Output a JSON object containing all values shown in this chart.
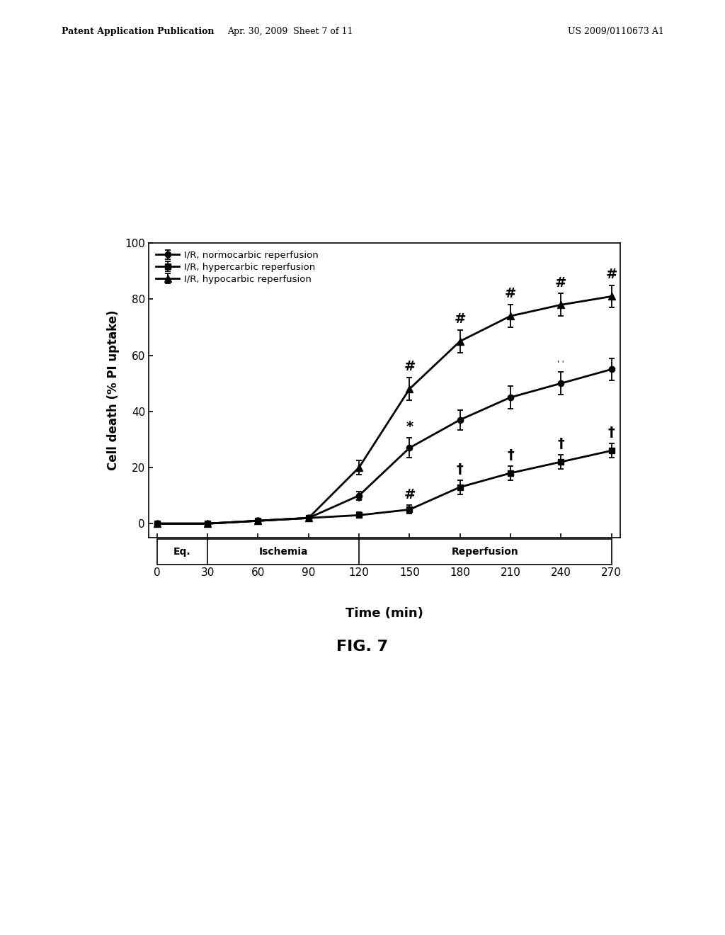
{
  "title": "FIG. 7",
  "patent_left": "Patent Application Publication",
  "patent_mid": "Apr. 30, 2009  Sheet 7 of 11",
  "patent_right": "US 2009/0110673 A1",
  "xlabel": "Time (min)",
  "ylabel": "Cell death (% PI uptake)",
  "xlim": [
    -5,
    275
  ],
  "ylim": [
    -5,
    100
  ],
  "yticks": [
    0,
    20,
    40,
    60,
    80,
    100
  ],
  "xticks": [
    0,
    30,
    60,
    90,
    120,
    150,
    180,
    210,
    240,
    270
  ],
  "time_points": [
    0,
    30,
    60,
    90,
    120,
    150,
    180,
    210,
    240,
    270
  ],
  "normocarbic_y": [
    0,
    0,
    1,
    2,
    10,
    27,
    37,
    45,
    50,
    55
  ],
  "normocarbic_err": [
    0.3,
    0.3,
    0.5,
    0.8,
    1.5,
    3.5,
    3.5,
    4,
    4,
    4
  ],
  "hypercarbic_y": [
    0,
    0,
    1,
    2,
    3,
    5,
    13,
    18,
    22,
    26
  ],
  "hypercarbic_err": [
    0.3,
    0.3,
    0.5,
    0.8,
    1,
    1.5,
    2.5,
    2.5,
    2.5,
    2.5
  ],
  "hypocarbic_y": [
    0,
    0,
    1,
    2,
    20,
    48,
    65,
    74,
    78,
    81
  ],
  "hypocarbic_err": [
    0.3,
    0.3,
    0.5,
    0.8,
    2.5,
    4,
    4,
    4,
    4,
    4
  ],
  "legend_labels": [
    "I/R, normocarbic reperfusion",
    "I/R, hypercarbic reperfusion",
    "I/R, hypocarbic reperfusion"
  ],
  "color": "#000000",
  "background_color": "#ffffff",
  "eq_label": "Eq.",
  "ischemia_label": "Ischemia",
  "reperfusion_label": "Reperfusion"
}
